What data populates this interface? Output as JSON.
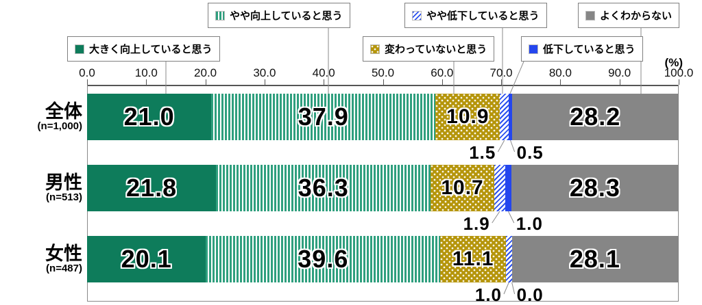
{
  "axis": {
    "unit_label": "(%)",
    "ticks": [
      "0.0",
      "10.0",
      "20.0",
      "30.0",
      "40.0",
      "50.0",
      "60.0",
      "70.0",
      "80.0",
      "90.0",
      "100.0"
    ]
  },
  "chart_data": {
    "type": "bar",
    "orientation": "horizontal",
    "stacked": true,
    "xlim": [
      0,
      100
    ],
    "x_unit_label": "(%)",
    "grid": false,
    "legend_position": "top-callout-boxes",
    "categories": [
      "全体",
      "男性",
      "女性"
    ],
    "category_sublabels": [
      "(n=1,000)",
      "(n=513)",
      "(n=487)"
    ],
    "series": [
      {
        "name": "大きく向上していると思う",
        "pattern": "solid",
        "color": "#0e7c5b",
        "values": [
          21.0,
          21.8,
          20.1
        ]
      },
      {
        "name": "やや向上していると思う",
        "pattern": "vertical-stripes",
        "color": "#2f9f7e",
        "values": [
          37.9,
          36.3,
          39.6
        ]
      },
      {
        "name": "変わっていないと思う",
        "pattern": "white-dots",
        "color": "#b5950b",
        "values": [
          10.9,
          10.7,
          11.1
        ]
      },
      {
        "name": "やや低下していると思う",
        "pattern": "diagonal-stripes",
        "color": "#2b50ee",
        "values": [
          1.5,
          1.9,
          1.0
        ]
      },
      {
        "name": "低下していると思う",
        "pattern": "solid",
        "color": "#2446ee",
        "values": [
          0.5,
          1.0,
          0.0
        ]
      },
      {
        "name": "よくわからない",
        "pattern": "solid",
        "color": "#868686",
        "values": [
          28.2,
          28.3,
          28.1
        ]
      }
    ]
  }
}
